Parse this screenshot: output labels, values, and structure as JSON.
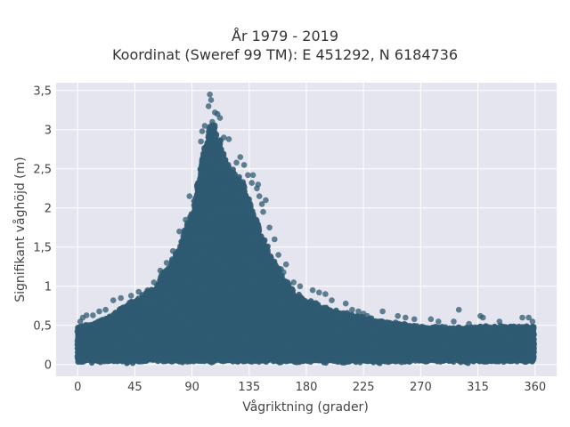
{
  "chart_data": {
    "type": "scatter",
    "title": [
      "År 1979 - 2019",
      "Koordinat (Sweref 99 TM): E 451292, N 6184736"
    ],
    "xlabel": "Vågriktning (grader)",
    "ylabel": "Signifikant våghöjd (m)",
    "xlim": [
      -17,
      377
    ],
    "ylim": [
      -0.15,
      3.6
    ],
    "xticks": [
      {
        "value": 0,
        "label": "0"
      },
      {
        "value": 45,
        "label": "45"
      },
      {
        "value": 90,
        "label": "90"
      },
      {
        "value": 135,
        "label": "135"
      },
      {
        "value": 180,
        "label": "180"
      },
      {
        "value": 225,
        "label": "225"
      },
      {
        "value": 270,
        "label": "270"
      },
      {
        "value": 315,
        "label": "315"
      },
      {
        "value": 360,
        "label": "360"
      }
    ],
    "yticks": [
      {
        "value": 0,
        "label": "0"
      },
      {
        "value": 0.5,
        "label": "0,5"
      },
      {
        "value": 1,
        "label": "1"
      },
      {
        "value": 1.5,
        "label": "1,5"
      },
      {
        "value": 2,
        "label": "2"
      },
      {
        "value": 2.5,
        "label": "2,5"
      },
      {
        "value": 3,
        "label": "3"
      },
      {
        "value": 3.5,
        "label": "3,5"
      }
    ],
    "grid": true,
    "marker_color": "#2f5a72",
    "background_color": "#e5e5ef",
    "envelope": [
      [
        0,
        0.5
      ],
      [
        15,
        0.55
      ],
      [
        30,
        0.7
      ],
      [
        45,
        0.85
      ],
      [
        60,
        1.0
      ],
      [
        75,
        1.4
      ],
      [
        90,
        2.0
      ],
      [
        100,
        2.9
      ],
      [
        105,
        3.3
      ],
      [
        110,
        3.05
      ],
      [
        120,
        2.6
      ],
      [
        130,
        2.4
      ],
      [
        140,
        1.95
      ],
      [
        150,
        1.5
      ],
      [
        160,
        1.2
      ],
      [
        170,
        0.95
      ],
      [
        180,
        0.85
      ],
      [
        200,
        0.72
      ],
      [
        225,
        0.62
      ],
      [
        250,
        0.55
      ],
      [
        270,
        0.5
      ],
      [
        300,
        0.48
      ],
      [
        320,
        0.5
      ],
      [
        340,
        0.5
      ],
      [
        360,
        0.5
      ]
    ],
    "extreme_points": [
      [
        104,
        3.45
      ],
      [
        105,
        3.38
      ],
      [
        103,
        3.3
      ],
      [
        108,
        3.22
      ],
      [
        110,
        3.2
      ],
      [
        112,
        3.15
      ],
      [
        106,
        3.1
      ],
      [
        100,
        3.05
      ],
      [
        98,
        2.98
      ],
      [
        115,
        2.9
      ],
      [
        119,
        2.88
      ],
      [
        97,
        2.85
      ],
      [
        113,
        2.75
      ],
      [
        128,
        2.65
      ],
      [
        125,
        2.58
      ],
      [
        131,
        2.55
      ],
      [
        134,
        2.42
      ],
      [
        138,
        2.42
      ],
      [
        137,
        2.32
      ],
      [
        142,
        2.3
      ],
      [
        141,
        2.25
      ],
      [
        143,
        2.15
      ],
      [
        148,
        2.1
      ],
      [
        145,
        2.05
      ],
      [
        146,
        1.95
      ],
      [
        151,
        1.75
      ],
      [
        155,
        1.6
      ],
      [
        158,
        1.4
      ],
      [
        164,
        1.28
      ],
      [
        160,
        1.22
      ],
      [
        162,
        1.18
      ],
      [
        170,
        1.05
      ],
      [
        175,
        1.0
      ],
      [
        185,
        0.95
      ],
      [
        190,
        0.92
      ],
      [
        195,
        0.9
      ],
      [
        200,
        0.82
      ],
      [
        211,
        0.78
      ],
      [
        216,
        0.7
      ],
      [
        221,
        0.68
      ],
      [
        225,
        0.65
      ],
      [
        228,
        0.62
      ],
      [
        240,
        0.68
      ],
      [
        252,
        0.62
      ],
      [
        258,
        0.6
      ],
      [
        265,
        0.58
      ],
      [
        278,
        0.58
      ],
      [
        284,
        0.55
      ],
      [
        296,
        0.55
      ],
      [
        300,
        0.7
      ],
      [
        308,
        0.52
      ],
      [
        317,
        0.62
      ],
      [
        319,
        0.6
      ],
      [
        332,
        0.55
      ],
      [
        350,
        0.6
      ],
      [
        355,
        0.6
      ],
      [
        358,
        0.55
      ],
      [
        88,
        2.15
      ],
      [
        85,
        1.85
      ],
      [
        80,
        1.7
      ],
      [
        75,
        1.45
      ],
      [
        70,
        1.3
      ],
      [
        65,
        1.2
      ],
      [
        60,
        1.05
      ],
      [
        55,
        0.95
      ],
      [
        48,
        0.93
      ],
      [
        42,
        0.88
      ],
      [
        34,
        0.85
      ],
      [
        28,
        0.82
      ],
      [
        22,
        0.7
      ],
      [
        17,
        0.68
      ],
      [
        12,
        0.63
      ],
      [
        7,
        0.63
      ],
      [
        4,
        0.6
      ],
      [
        2,
        0.55
      ],
      [
        1,
        0.45
      ]
    ]
  }
}
